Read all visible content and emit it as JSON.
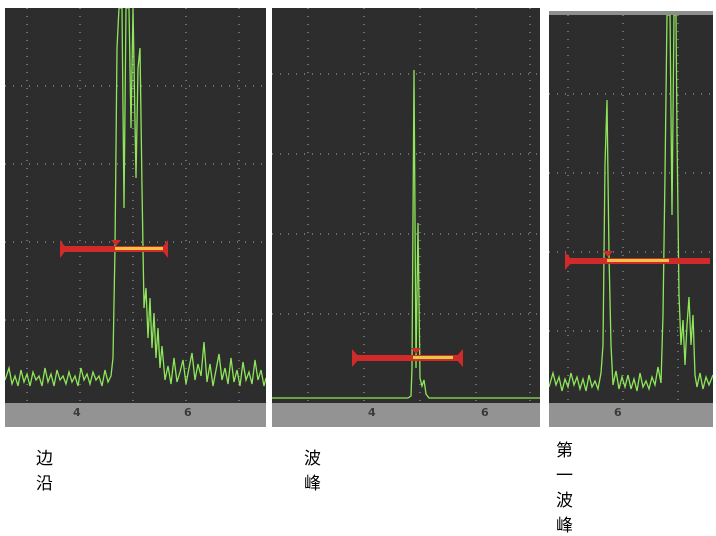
{
  "panels": [
    {
      "caption": "边沿",
      "axis_ticks": [
        "4",
        "6"
      ],
      "waveform_color": "#8ee65a",
      "gate_color": "#d02a2a",
      "gate_marker_color": "#f0e04a"
    },
    {
      "caption": "波峰",
      "axis_ticks": [
        "4",
        "6"
      ],
      "waveform_color": "#8ee65a",
      "gate_color": "#d02a2a",
      "gate_marker_color": "#f0e04a"
    },
    {
      "caption": "第一波峰",
      "axis_ticks": [
        "6"
      ],
      "waveform_color": "#8ee65a",
      "gate_color": "#d02a2a",
      "gate_marker_color": "#f0e04a"
    }
  ]
}
